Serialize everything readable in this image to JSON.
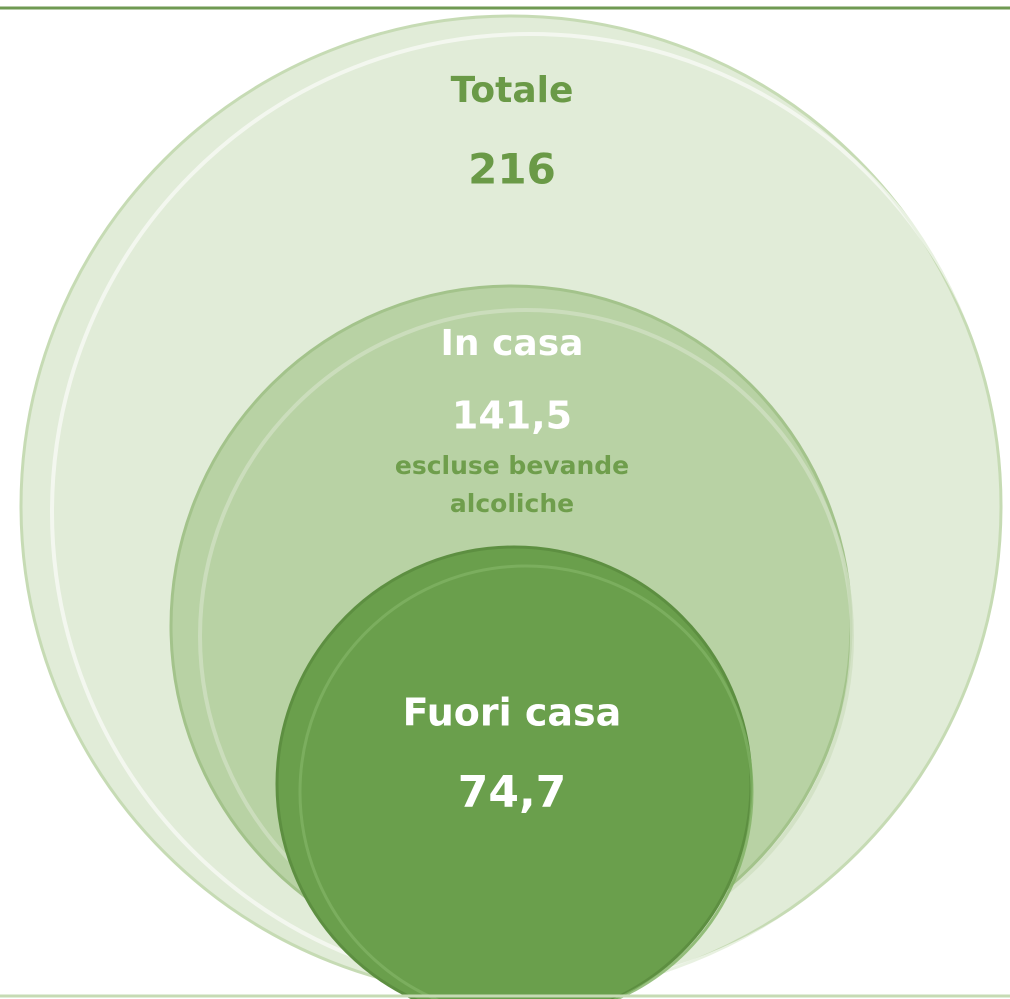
{
  "nodes": [
    {
      "label": "Totale",
      "value": "216"
    },
    {
      "label": "In casa",
      "value": "141,5",
      "note": [
        "escluse bevande",
        "alcoliche"
      ]
    },
    {
      "label": "Fuori casa",
      "value": "74,7"
    }
  ]
}
